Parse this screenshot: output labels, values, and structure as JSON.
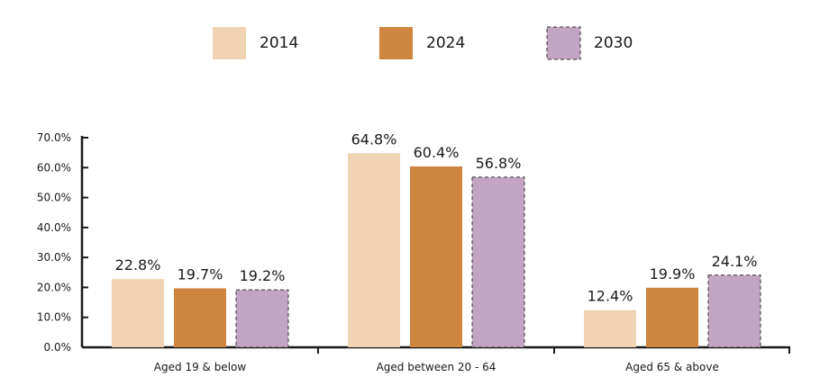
{
  "chart_data": {
    "type": "bar",
    "title": "",
    "xlabel": "",
    "ylabel": "",
    "ylim": [
      0,
      70
    ],
    "y_ticks": [
      0,
      10,
      20,
      30,
      40,
      50,
      60,
      70
    ],
    "y_tick_labels": [
      "0.0%",
      "10.0%",
      "20.0%",
      "30.0%",
      "40.0%",
      "50.0%",
      "60.0%",
      "70.0%"
    ],
    "grid": false,
    "legend_position": "top-center",
    "categories": [
      "Aged 19 & below",
      "Aged between 20 - 64",
      "Aged 65 & above"
    ],
    "series": [
      {
        "name": "2014",
        "values": [
          22.8,
          64.8,
          12.4
        ],
        "labels": [
          "22.8%",
          "64.8%",
          "12.4%"
        ],
        "color": "#f0d3b2",
        "dashed": false
      },
      {
        "name": "2024",
        "values": [
          19.7,
          60.4,
          19.9
        ],
        "labels": [
          "19.7%",
          "60.4%",
          "19.9%"
        ],
        "color": "#cd853f",
        "dashed": false
      },
      {
        "name": "2030",
        "values": [
          19.2,
          56.8,
          24.1
        ],
        "labels": [
          "19.2%",
          "56.8%",
          "24.1%"
        ],
        "color": "#c2a5c2",
        "dashed": true
      }
    ]
  }
}
